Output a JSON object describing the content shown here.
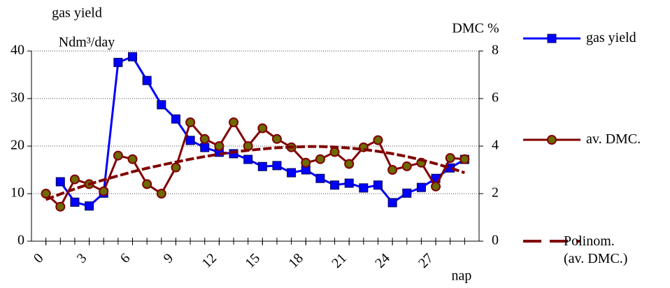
{
  "chart_data": {
    "type": "line",
    "y_title_line1": "gas yield",
    "y_title_line2": "Ndm³/day",
    "y2_title": "DMC %",
    "x_title": "nap",
    "x": [
      0,
      1,
      2,
      3,
      4,
      5,
      6,
      7,
      8,
      9,
      10,
      11,
      12,
      13,
      14,
      15,
      16,
      17,
      18,
      19,
      20,
      21,
      22,
      23,
      24,
      25,
      26,
      27,
      28,
      29
    ],
    "xlim": [
      -1,
      30
    ],
    "xticks": [
      0,
      3,
      6,
      9,
      12,
      15,
      18,
      21,
      24,
      27
    ],
    "ylim": [
      0,
      40
    ],
    "yticks": [
      0,
      10,
      20,
      30,
      40
    ],
    "y2lim": [
      0,
      8
    ],
    "y2ticks": [
      0,
      2,
      4,
      6,
      8
    ],
    "grid": true,
    "legend": "right",
    "series": [
      {
        "name": "gas yield",
        "color": "#0000ff",
        "marker": "square",
        "values": [
          null,
          12.5,
          8.2,
          7.4,
          10.1,
          37.6,
          38.8,
          33.8,
          28.7,
          25.7,
          21.2,
          19.7,
          18.7,
          18.4,
          17.2,
          15.7,
          15.9,
          14.4,
          15.0,
          13.2,
          11.8,
          12.2,
          11.2,
          11.8,
          8.1,
          10.1,
          11.3,
          13.2,
          15.4,
          17.2
        ]
      },
      {
        "name": "av. DMC.",
        "color": "#800000",
        "marker": "circle",
        "axis": "y2",
        "values": [
          2.0,
          1.45,
          2.6,
          2.4,
          2.1,
          3.6,
          3.45,
          2.4,
          2.0,
          3.1,
          5.0,
          4.3,
          4.0,
          5.0,
          4.0,
          4.75,
          4.3,
          3.95,
          3.3,
          3.45,
          3.75,
          3.25,
          3.95,
          4.25,
          3.0,
          3.15,
          3.3,
          2.3,
          3.5,
          3.45
        ]
      },
      {
        "name": "Polinom. (av. DMC.)",
        "color": "#800000",
        "marker": "none",
        "dashed": true,
        "axis": "y2",
        "values": [
          1.75,
          1.98,
          2.2,
          2.4,
          2.58,
          2.75,
          2.92,
          3.07,
          3.2,
          3.33,
          3.45,
          3.56,
          3.66,
          3.75,
          3.82,
          3.88,
          3.93,
          3.96,
          3.98,
          3.98,
          3.96,
          3.92,
          3.86,
          3.78,
          3.68,
          3.56,
          3.42,
          3.26,
          3.08,
          2.88
        ]
      }
    ]
  }
}
